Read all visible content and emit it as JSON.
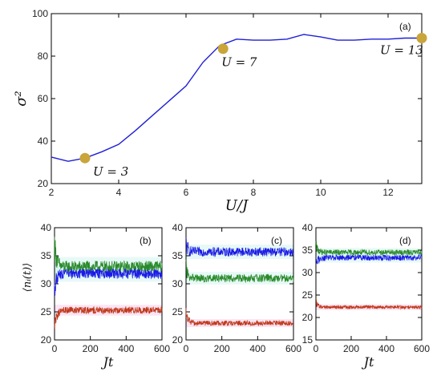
{
  "colors": {
    "line_main": "#1f1fd6",
    "marker": "#c9a53a",
    "green": "#2a8a2a",
    "blue": "#1a1ae6",
    "red": "#c0391b",
    "band_pink": "#f6c6e6",
    "band_cyan": "#c9f2ea",
    "axis": "#000000"
  },
  "chart_data": [
    {
      "type": "line",
      "panel_tag": "(a)",
      "xlabel": "U/J",
      "ylabel": "σ²",
      "xlim": [
        2,
        13
      ],
      "ylim": [
        20,
        100
      ],
      "xticks": [
        2,
        4,
        6,
        8,
        10,
        12
      ],
      "yticks": [
        20,
        40,
        60,
        80,
        100
      ],
      "series": [
        {
          "x": [
            2,
            2.5,
            3,
            3.5,
            4,
            4.5,
            5,
            5.5,
            6,
            6.5,
            7,
            7.5,
            8,
            8.5,
            9,
            9.5,
            10,
            10.5,
            11,
            11.5,
            12,
            12.5,
            13
          ],
          "values": [
            32.5,
            30.5,
            32,
            35,
            38.5,
            45,
            52,
            59,
            66,
            77,
            85,
            88,
            87.5,
            87.5,
            88,
            90.2,
            89,
            87.5,
            87.5,
            88,
            88,
            88.5,
            88.5
          ]
        }
      ],
      "markers": [
        {
          "x": 3,
          "y": 32,
          "label": "U = 3"
        },
        {
          "x": 7.1,
          "y": 83.5,
          "label": "U = 7"
        },
        {
          "x": 13,
          "y": 88.5,
          "label": "U = 13"
        }
      ]
    },
    {
      "type": "line",
      "panel_tag": "(b)",
      "xlabel": "Jt",
      "ylabel": "⟨nᵢ(t)⟩",
      "xlim": [
        0,
        600
      ],
      "ylim": [
        20,
        40
      ],
      "xticks": [
        0,
        200,
        400,
        600
      ],
      "yticks": [
        20,
        25,
        30,
        35,
        40
      ],
      "series": [
        {
          "color": "green",
          "start": 37,
          "mean": 33.0,
          "noise": 1.1
        },
        {
          "color": "blue",
          "start": 29,
          "mean": 31.8,
          "noise": 0.9
        },
        {
          "color": "red",
          "start": 22,
          "mean": 25.3,
          "noise": 0.6
        }
      ]
    },
    {
      "type": "line",
      "panel_tag": "(c)",
      "xlabel": "",
      "ylabel": "",
      "xlim": [
        0,
        600
      ],
      "ylim": [
        20,
        40
      ],
      "xticks": [
        0,
        200,
        400,
        600
      ],
      "yticks": [
        20,
        25,
        30,
        35,
        40
      ],
      "series": [
        {
          "color": "blue",
          "start": 37,
          "mean": 35.7,
          "noise": 0.8
        },
        {
          "color": "green",
          "start": 33,
          "mean": 31.0,
          "noise": 0.7
        },
        {
          "color": "red",
          "start": 25,
          "mean": 23.0,
          "noise": 0.45
        }
      ]
    },
    {
      "type": "line",
      "panel_tag": "(d)",
      "xlabel": "Jt",
      "ylabel": "",
      "xlim": [
        0,
        600
      ],
      "ylim": [
        15,
        40
      ],
      "xticks": [
        0,
        200,
        400,
        600
      ],
      "yticks": [
        15,
        20,
        25,
        30,
        35,
        40
      ],
      "series": [
        {
          "color": "green",
          "start": 36,
          "mean": 34.5,
          "noise": 0.6
        },
        {
          "color": "blue",
          "start": 31.5,
          "mean": 33.3,
          "noise": 0.65
        },
        {
          "color": "red",
          "start": 23.5,
          "mean": 22.3,
          "noise": 0.4
        }
      ]
    }
  ]
}
